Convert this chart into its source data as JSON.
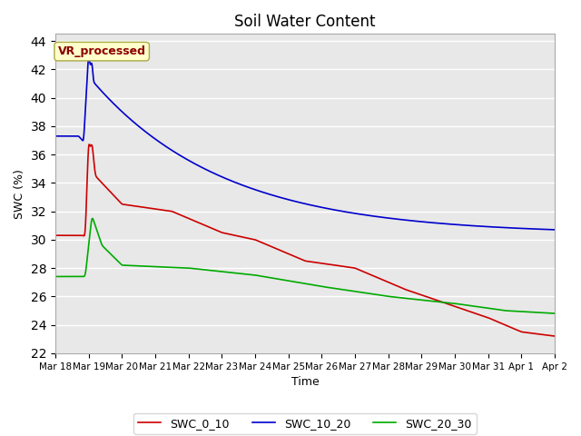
{
  "title": "Soil Water Content",
  "xlabel": "Time",
  "ylabel": "SWC (%)",
  "ylim": [
    22,
    44.5
  ],
  "annotation_text": "VR_processed",
  "annotation_color": "#8B0000",
  "annotation_bg": "#FFFFCC",
  "plot_bg": "#E8E8E8",
  "legend_entries": [
    "SWC_0_10",
    "SWC_10_20",
    "SWC_20_30"
  ],
  "line_colors": [
    "#CC0000",
    "#0000CC",
    "#00AA00"
  ],
  "grid_color": "white",
  "tick_labels": [
    "Mar 18",
    "Mar 19",
    "Mar 20",
    "Mar 21",
    "Mar 22",
    "Mar 23",
    "Mar 24",
    "Mar 25",
    "Mar 26",
    "Mar 27",
    "Mar 28",
    "Mar 29",
    "Mar 30",
    "Mar 31",
    "Apr 1",
    "Apr 2"
  ],
  "n_points": 2000
}
